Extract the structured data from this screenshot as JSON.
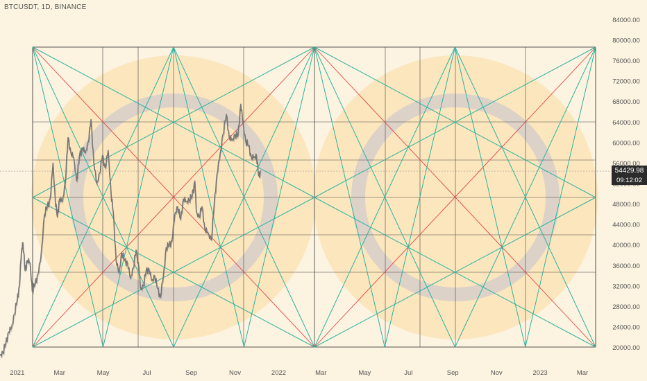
{
  "symbol": "BTCUSDT, 1D, BINANCE",
  "last_price_label": "54429.98",
  "countdown_label": "09:12:02",
  "colors": {
    "background": "#fcf3e0",
    "halo": "#fbe3b6",
    "ring": "#dcd2c8",
    "grid": "#444444",
    "teal": "#2ab3a0",
    "red": "#e04545",
    "price": "#777777",
    "badge": "#2b2b2b"
  },
  "chart_data": {
    "type": "line",
    "x_domain": [
      "2020-12-08",
      "2023-03-31"
    ],
    "y_domain": [
      17500,
      86500
    ],
    "y_ticks": [
      84000,
      80000,
      76000,
      72000,
      68000,
      64000,
      60000,
      56000,
      52000,
      48000,
      44000,
      40000,
      36000,
      32000,
      28000,
      24000,
      20000
    ],
    "y_tick_labels": [
      "84000.00",
      "80000.00",
      "76000.00",
      "72000.00",
      "68000.00",
      "64000.00",
      "60000.00",
      "56000.00",
      "52000.00",
      "48000.00",
      "44000.00",
      "40000.00",
      "36000.00",
      "32000.00",
      "28000.00",
      "24000.00",
      "20000.00"
    ],
    "x_ticks": [
      {
        "label": "2021",
        "date": "2021-01-01"
      },
      {
        "label": "Mar",
        "date": "2021-03-01"
      },
      {
        "label": "May",
        "date": "2021-05-01"
      },
      {
        "label": "Jul",
        "date": "2021-07-01"
      },
      {
        "label": "Sep",
        "date": "2021-09-01"
      },
      {
        "label": "Nov",
        "date": "2021-11-01"
      },
      {
        "label": "2022",
        "date": "2022-01-01"
      },
      {
        "label": "Mar",
        "date": "2022-03-01"
      },
      {
        "label": "May",
        "date": "2022-05-01"
      },
      {
        "label": "Jul",
        "date": "2022-07-01"
      },
      {
        "label": "Sep",
        "date": "2022-09-01"
      },
      {
        "label": "Nov",
        "date": "2022-11-01"
      },
      {
        "label": "2023",
        "date": "2023-01-01"
      },
      {
        "label": "Mar",
        "date": "2023-03-01"
      }
    ],
    "last_price": 54429.98,
    "price_series": [
      [
        "2020-12-08",
        18500
      ],
      [
        "2020-12-12",
        19000
      ],
      [
        "2020-12-16",
        20800
      ],
      [
        "2020-12-20",
        23000
      ],
      [
        "2020-12-24",
        23800
      ],
      [
        "2020-12-28",
        26500
      ],
      [
        "2021-01-01",
        29300
      ],
      [
        "2021-01-04",
        32000
      ],
      [
        "2021-01-07",
        39000
      ],
      [
        "2021-01-09",
        40500
      ],
      [
        "2021-01-12",
        35000
      ],
      [
        "2021-01-15",
        37000
      ],
      [
        "2021-01-19",
        36500
      ],
      [
        "2021-01-22",
        31000
      ],
      [
        "2021-01-26",
        32500
      ],
      [
        "2021-01-30",
        34300
      ],
      [
        "2021-02-03",
        37500
      ],
      [
        "2021-02-08",
        46000
      ],
      [
        "2021-02-12",
        47500
      ],
      [
        "2021-02-16",
        49000
      ],
      [
        "2021-02-20",
        56000
      ],
      [
        "2021-02-23",
        49000
      ],
      [
        "2021-02-26",
        45500
      ],
      [
        "2021-03-01",
        49000
      ],
      [
        "2021-03-05",
        48500
      ],
      [
        "2021-03-09",
        52000
      ],
      [
        "2021-03-13",
        61000
      ],
      [
        "2021-03-17",
        58000
      ],
      [
        "2021-03-21",
        57000
      ],
      [
        "2021-03-25",
        52500
      ],
      [
        "2021-03-29",
        57500
      ],
      [
        "2021-04-02",
        59000
      ],
      [
        "2021-04-06",
        58000
      ],
      [
        "2021-04-10",
        60000
      ],
      [
        "2021-04-14",
        64500
      ],
      [
        "2021-04-18",
        56000
      ],
      [
        "2021-04-22",
        52000
      ],
      [
        "2021-04-26",
        54000
      ],
      [
        "2021-04-30",
        57500
      ],
      [
        "2021-05-04",
        55000
      ],
      [
        "2021-05-08",
        58500
      ],
      [
        "2021-05-12",
        50000
      ],
      [
        "2021-05-15",
        46500
      ],
      [
        "2021-05-19",
        37000
      ],
      [
        "2021-05-23",
        34500
      ],
      [
        "2021-05-27",
        38500
      ],
      [
        "2021-05-31",
        37000
      ],
      [
        "2021-06-04",
        36500
      ],
      [
        "2021-06-08",
        33500
      ],
      [
        "2021-06-12",
        35500
      ],
      [
        "2021-06-16",
        39000
      ],
      [
        "2021-06-20",
        35500
      ],
      [
        "2021-06-22",
        31500
      ],
      [
        "2021-06-26",
        32000
      ],
      [
        "2021-06-30",
        35000
      ],
      [
        "2021-07-04",
        35300
      ],
      [
        "2021-07-08",
        33000
      ],
      [
        "2021-07-12",
        34000
      ],
      [
        "2021-07-16",
        31500
      ],
      [
        "2021-07-20",
        29800
      ],
      [
        "2021-07-24",
        34000
      ],
      [
        "2021-07-28",
        39500
      ],
      [
        "2021-08-01",
        40000
      ],
      [
        "2021-08-05",
        40800
      ],
      [
        "2021-08-09",
        46000
      ],
      [
        "2021-08-13",
        47500
      ],
      [
        "2021-08-17",
        45000
      ],
      [
        "2021-08-21",
        49000
      ],
      [
        "2021-08-25",
        48500
      ],
      [
        "2021-08-29",
        48800
      ],
      [
        "2021-09-02",
        49500
      ],
      [
        "2021-09-06",
        52500
      ],
      [
        "2021-09-08",
        46500
      ],
      [
        "2021-09-12",
        45500
      ],
      [
        "2021-09-16",
        47500
      ],
      [
        "2021-09-20",
        43000
      ],
      [
        "2021-09-24",
        42500
      ],
      [
        "2021-09-29",
        41000
      ],
      [
        "2021-10-03",
        48000
      ],
      [
        "2021-10-07",
        54000
      ],
      [
        "2021-10-11",
        57500
      ],
      [
        "2021-10-15",
        61500
      ],
      [
        "2021-10-20",
        65500
      ],
      [
        "2021-10-24",
        61000
      ],
      [
        "2021-10-28",
        60500
      ],
      [
        "2021-11-01",
        61500
      ],
      [
        "2021-11-05",
        61300
      ],
      [
        "2021-11-09",
        67500
      ],
      [
        "2021-11-12",
        64000
      ],
      [
        "2021-11-16",
        60200
      ],
      [
        "2021-11-20",
        59500
      ],
      [
        "2021-11-24",
        57000
      ],
      [
        "2021-11-28",
        57200
      ],
      [
        "2021-12-01",
        57500
      ],
      [
        "2021-12-04",
        53500
      ],
      [
        "2021-12-07",
        54430
      ]
    ]
  }
}
